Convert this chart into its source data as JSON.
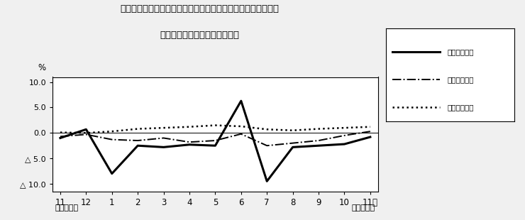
{
  "title_line1": "第４図　賃金、労働時間、常用雇用指数　対前年同月比の推移",
  "title_line2": "（規模５人以上　調査産業計）",
  "xlabel_left": "平成２３年",
  "xlabel_right": "平成２４年",
  "ylabel": "%",
  "month_labels": [
    "11",
    "12",
    "1",
    "2",
    "3",
    "4",
    "5",
    "6",
    "7",
    "8",
    "9",
    "10",
    "11月"
  ],
  "ylim": [
    -11.5,
    11.0
  ],
  "yticks": [
    10.0,
    5.0,
    0.0,
    -5.0,
    -10.0
  ],
  "ytick_labels": [
    "10.0",
    "5.0",
    "0.0",
    "△ 5.0",
    "△ 10.0"
  ],
  "series": {
    "cash_wages": {
      "label": "現金給与総額",
      "linestyle": "solid",
      "linewidth": 2.2,
      "color": "#000000",
      "values": [
        -1.0,
        0.7,
        -8.0,
        -2.5,
        -2.8,
        -2.3,
        -2.5,
        6.3,
        -9.5,
        -2.8,
        -2.5,
        -2.2,
        -0.8
      ]
    },
    "total_hours": {
      "label": "総実労働時間",
      "linestyle": "dashdot",
      "linewidth": 1.4,
      "color": "#000000",
      "values": [
        -0.7,
        -0.3,
        -1.3,
        -1.5,
        -1.0,
        -1.8,
        -1.5,
        -0.2,
        -2.5,
        -2.0,
        -1.5,
        -0.5,
        0.3
      ]
    },
    "employment_index": {
      "label": "常用雇用指数",
      "linestyle": "dotted",
      "linewidth": 1.8,
      "color": "#000000",
      "values": [
        0.1,
        0.0,
        0.3,
        0.8,
        1.0,
        1.2,
        1.5,
        1.3,
        0.7,
        0.5,
        0.8,
        1.0,
        1.2
      ]
    }
  },
  "background_color": "#f0f0f0",
  "plot_bg_color": "#ffffff"
}
